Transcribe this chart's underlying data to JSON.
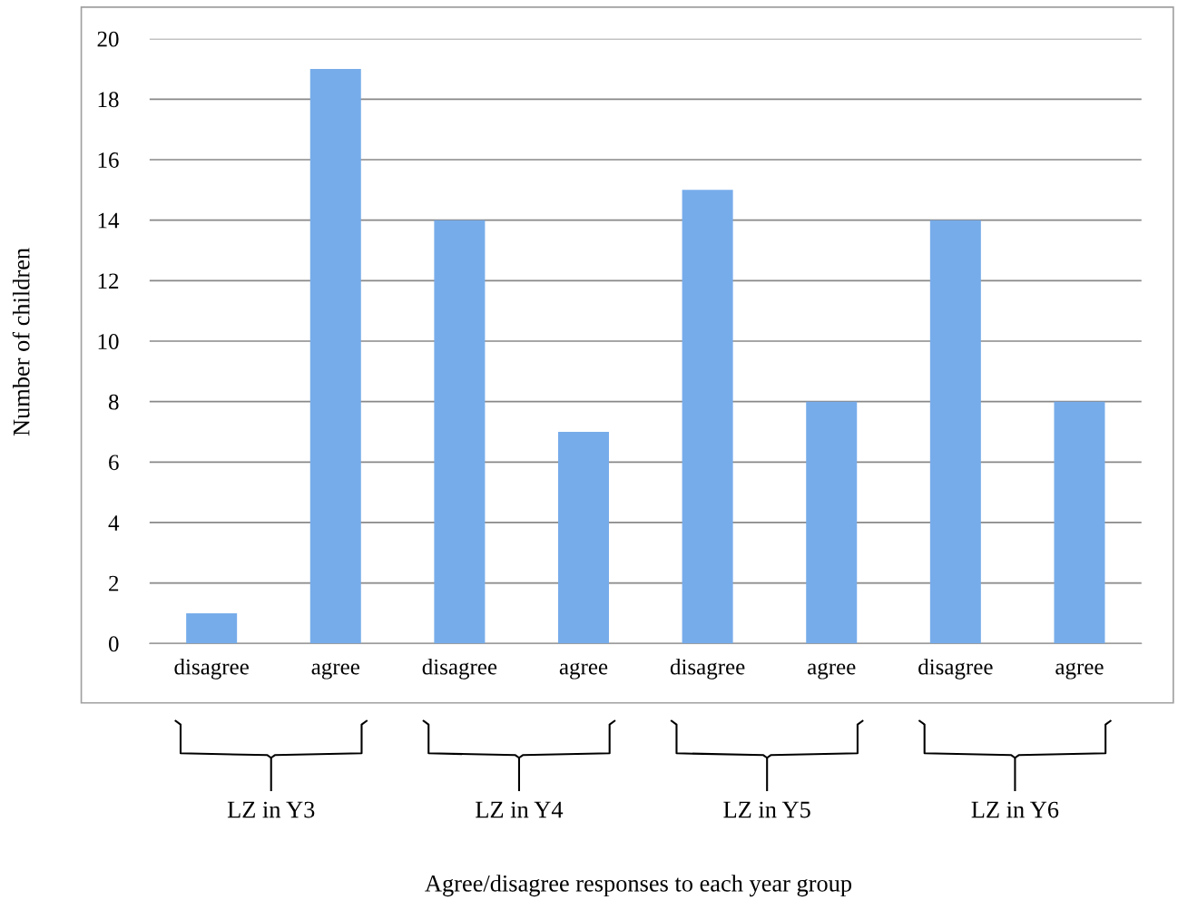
{
  "chart_data": {
    "type": "bar",
    "categories": [
      "disagree",
      "agree",
      "disagree",
      "agree",
      "disagree",
      "agree",
      "disagree",
      "agree"
    ],
    "values": [
      1,
      19,
      14,
      7,
      15,
      8,
      14,
      8
    ],
    "color": "#77acea",
    "ylabel": "Number of children",
    "ylim": [
      0,
      20
    ],
    "yticks": [
      0,
      2,
      4,
      6,
      8,
      10,
      12,
      14,
      16,
      18,
      20
    ],
    "grid": "y",
    "annotations": [
      "LZ in Y3",
      "LZ in Y4",
      "LZ in Y5",
      "LZ in Y6",
      "Agree/disagree responses to each year group"
    ]
  }
}
